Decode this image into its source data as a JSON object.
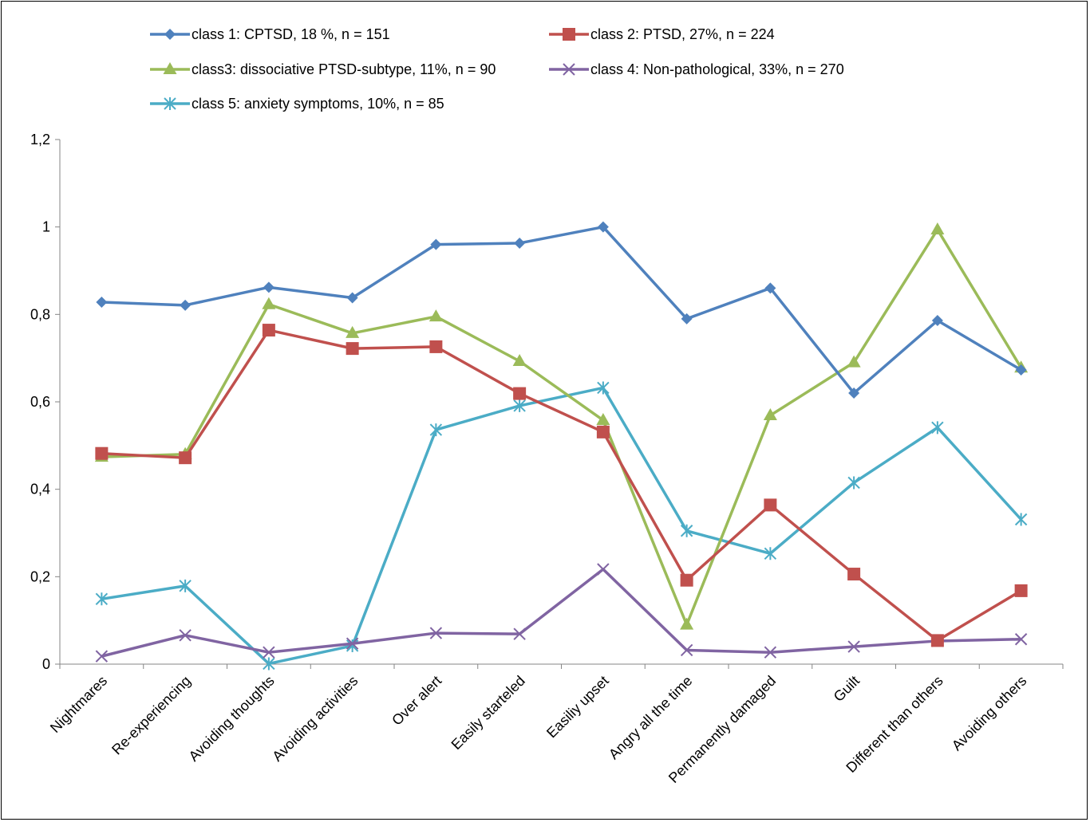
{
  "chart_data": {
    "type": "line",
    "title": "",
    "xlabel": "",
    "ylabel": "",
    "ylim": [
      0,
      1.2
    ],
    "yticks": [
      "0",
      "0,2",
      "0,4",
      "0,6",
      "0,8",
      "1",
      "1,2"
    ],
    "grid": false,
    "legend_position": "top",
    "categories": [
      "Nightmares",
      "Re-experiencing",
      "Avoiding thoughts",
      "Avoiding activities",
      "Over alert",
      "Easily starteled",
      "Easiliy upset",
      "Angry all the time",
      "Permanently damaged",
      "Guilt",
      "Different than others",
      "Avoiding others"
    ],
    "series": [
      {
        "name": "class 1: CPTSD, 18 %, n = 151",
        "color": "#4f81bd",
        "marker": "diamond",
        "values": [
          0.828,
          0.821,
          0.862,
          0.838,
          0.96,
          0.963,
          1.0,
          0.79,
          0.86,
          0.62,
          0.786,
          0.673
        ]
      },
      {
        "name": "class 2: PTSD, 27%, n = 224",
        "color": "#c0504d",
        "marker": "square",
        "values": [
          0.482,
          0.472,
          0.764,
          0.722,
          0.726,
          0.619,
          0.531,
          0.192,
          0.364,
          0.206,
          0.054,
          0.168
        ]
      },
      {
        "name": "class3: dissociative PTSD-subtype, 11%, n = 90",
        "color": "#9bbb59",
        "marker": "triangle",
        "values": [
          0.474,
          0.48,
          0.823,
          0.757,
          0.795,
          0.693,
          0.558,
          0.09,
          0.569,
          0.69,
          0.994,
          0.678
        ]
      },
      {
        "name": "class 4: Non-pathological, 33%, n = 270",
        "color": "#8064a2",
        "marker": "x",
        "values": [
          0.018,
          0.066,
          0.027,
          0.047,
          0.071,
          0.069,
          0.217,
          0.032,
          0.027,
          0.04,
          0.053,
          0.057
        ]
      },
      {
        "name": "class 5: anxiety symptoms, 10%, n = 85",
        "color": "#4bacc6",
        "marker": "star",
        "values": [
          0.149,
          0.179,
          0.001,
          0.042,
          0.536,
          0.591,
          0.632,
          0.305,
          0.253,
          0.415,
          0.541,
          0.331
        ]
      }
    ]
  }
}
